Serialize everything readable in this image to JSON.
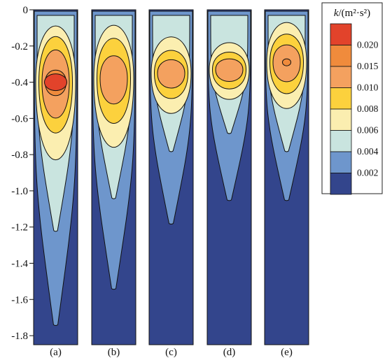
{
  "chart_data": {
    "type": "heatmap",
    "title": "",
    "xlabel": "",
    "ylabel": "",
    "ylim": [
      -1.85,
      0
    ],
    "y_ticks": [
      0,
      -0.2,
      -0.4,
      -0.6,
      -0.8,
      -1.0,
      -1.2,
      -1.4,
      -1.6,
      -1.8
    ],
    "y_tick_labels": [
      "0",
      "-0.2",
      "-0.4",
      "-0.6",
      "-0.8",
      "-1.0",
      "-1.2",
      "-1.4",
      "-1.6",
      "-1.8"
    ],
    "panels": [
      {
        "label": "(a)",
        "core_depth": -0.4,
        "levels_depth": {
          "0.004": -1.74,
          "0.006": -1.22,
          "0.008": -0.92,
          "0.010": -0.74,
          "0.015": -0.64,
          "0.020": -0.49
        },
        "max_level": "0.020"
      },
      {
        "label": "(b)",
        "core_depth": -0.38,
        "levels_depth": {
          "0.004": -1.54,
          "0.006": -1.04,
          "0.008": -0.84,
          "0.010": -0.68,
          "0.015": -0.55
        },
        "max_level": "0.015"
      },
      {
        "label": "(c)",
        "core_depth": -0.35,
        "levels_depth": {
          "0.004": -1.18,
          "0.006": -0.78,
          "0.008": -0.62,
          "0.010": -0.52,
          "0.015": -0.45
        },
        "max_level": "0.015"
      },
      {
        "label": "(d)",
        "core_depth": -0.33,
        "levels_depth": {
          "0.004": -1.05,
          "0.006": -0.68,
          "0.008": -0.53,
          "0.010": -0.46,
          "0.015": -0.41
        },
        "max_level": "0.015"
      },
      {
        "label": "(e)",
        "core_depth": -0.29,
        "levels_depth": {
          "0.004": -1.05,
          "0.006": -0.78,
          "0.008": -0.6,
          "0.010": -0.5,
          "0.015": -0.42
        },
        "max_level": "0.015"
      }
    ],
    "legend": {
      "title_var": "k",
      "title_unit": "/(m²·s²)",
      "placement": "top-right",
      "levels": [
        {
          "label": "0.020",
          "color": "#e2432b"
        },
        {
          "label": "0.015",
          "color": "#f08b3c"
        },
        {
          "label": "0.010",
          "color": "#f4a15f"
        },
        {
          "label": "0.008",
          "color": "#fcd13d"
        },
        {
          "label": "0.006",
          "color": "#fbeeb0"
        },
        {
          "label": "0.004",
          "color": "#c9e4df"
        },
        {
          "label": "0.002",
          "color": "#6e96cc"
        },
        {
          "label": "",
          "color": "#33458c"
        }
      ]
    },
    "colors": {
      "background": "#33458c",
      "level_0002": "#6e96cc",
      "level_0004": "#c9e4df",
      "level_0006": "#fbeeb0",
      "level_0008": "#fcd13d",
      "level_0010": "#f4a15f",
      "level_0015": "#f08b3c",
      "level_0020": "#e2432b"
    }
  }
}
